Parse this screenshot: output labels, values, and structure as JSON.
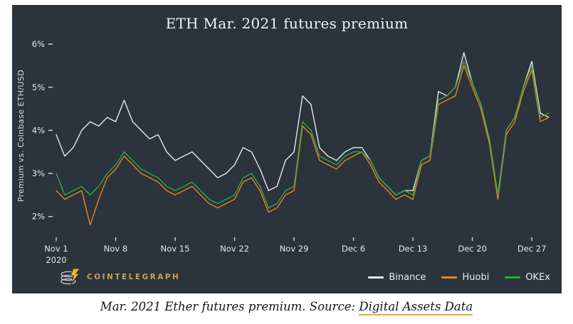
{
  "caption": {
    "text": "Mar. 2021 Ether futures premium. Source: ",
    "link_text": "Digital Assets Data",
    "underline_color": "#eda63a"
  },
  "logo": {
    "text": "COINTELEGRAPH",
    "color": "#cda349"
  },
  "chart_data": {
    "type": "line",
    "title": "ETH Mar. 2021 futures premium",
    "xlabel": "",
    "ylabel": "Premium vs. Coinbase ETH/USD",
    "background": "#2b333c",
    "grid": false,
    "legend_position": "bottom-right",
    "x_unit": "daily",
    "x_range": [
      "Nov 1, 2020",
      "Dec 29, 2020"
    ],
    "ylim": [
      1.6,
      6.15
    ],
    "y_ticks": [
      {
        "value": 2,
        "label": "2%"
      },
      {
        "value": 3,
        "label": "3%"
      },
      {
        "value": 4,
        "label": "4%"
      },
      {
        "value": 5,
        "label": "5%"
      },
      {
        "value": 6,
        "label": "6%"
      }
    ],
    "x_ticks": [
      {
        "index": 0,
        "label": "Nov 1",
        "sublabel": "2020"
      },
      {
        "index": 7,
        "label": "Nov 8"
      },
      {
        "index": 14,
        "label": "Nov 15"
      },
      {
        "index": 21,
        "label": "Nov 22"
      },
      {
        "index": 28,
        "label": "Nov 29"
      },
      {
        "index": 35,
        "label": "Dec 6"
      },
      {
        "index": 42,
        "label": "Dec 13"
      },
      {
        "index": 49,
        "label": "Dec 20"
      },
      {
        "index": 56,
        "label": "Dec 27"
      }
    ],
    "series": [
      {
        "name": "Binance",
        "color": "#e8e8e8",
        "values": [
          3.9,
          3.4,
          3.6,
          4.0,
          4.2,
          4.1,
          4.3,
          4.2,
          4.7,
          4.2,
          4.0,
          3.8,
          3.9,
          3.5,
          3.3,
          3.4,
          3.5,
          3.3,
          3.1,
          2.9,
          3.0,
          3.2,
          3.6,
          3.5,
          3.1,
          2.6,
          2.7,
          3.3,
          3.5,
          4.8,
          4.6,
          3.6,
          3.4,
          3.3,
          3.5,
          3.6,
          3.6,
          3.3,
          2.9,
          2.7,
          2.5,
          2.6,
          2.6,
          3.3,
          3.4,
          4.9,
          4.8,
          5.0,
          5.8,
          5.1,
          4.6,
          3.8,
          2.5,
          4.0,
          4.3,
          5.0,
          5.6,
          4.4,
          4.3
        ]
      },
      {
        "name": "Huobi",
        "color": "#f08119",
        "values": [
          2.6,
          2.4,
          2.5,
          2.6,
          1.8,
          2.4,
          2.9,
          3.1,
          3.4,
          3.2,
          3.0,
          2.9,
          2.8,
          2.6,
          2.5,
          2.6,
          2.7,
          2.5,
          2.3,
          2.2,
          2.3,
          2.4,
          2.8,
          2.9,
          2.6,
          2.1,
          2.2,
          2.5,
          2.6,
          4.1,
          3.9,
          3.3,
          3.2,
          3.1,
          3.3,
          3.4,
          3.5,
          3.2,
          2.8,
          2.6,
          2.4,
          2.5,
          2.4,
          3.2,
          3.3,
          4.6,
          4.7,
          4.8,
          5.5,
          5.0,
          4.5,
          3.7,
          2.4,
          3.9,
          4.2,
          4.9,
          5.4,
          4.2,
          4.3
        ]
      },
      {
        "name": "OKEx",
        "color": "#2fa846",
        "values": [
          3.0,
          2.5,
          2.6,
          2.7,
          2.5,
          2.7,
          3.0,
          3.2,
          3.5,
          3.3,
          3.1,
          3.0,
          2.9,
          2.7,
          2.6,
          2.7,
          2.8,
          2.6,
          2.4,
          2.3,
          2.4,
          2.5,
          2.9,
          3.0,
          2.7,
          2.2,
          2.3,
          2.6,
          2.7,
          4.2,
          4.0,
          3.4,
          3.3,
          3.2,
          3.4,
          3.5,
          3.5,
          3.3,
          2.9,
          2.7,
          2.5,
          2.6,
          2.5,
          3.3,
          3.4,
          4.7,
          4.8,
          5.0,
          5.6,
          5.1,
          4.6,
          3.8,
          2.5,
          4.0,
          4.3,
          5.0,
          5.5,
          4.3,
          4.4
        ]
      }
    ]
  }
}
